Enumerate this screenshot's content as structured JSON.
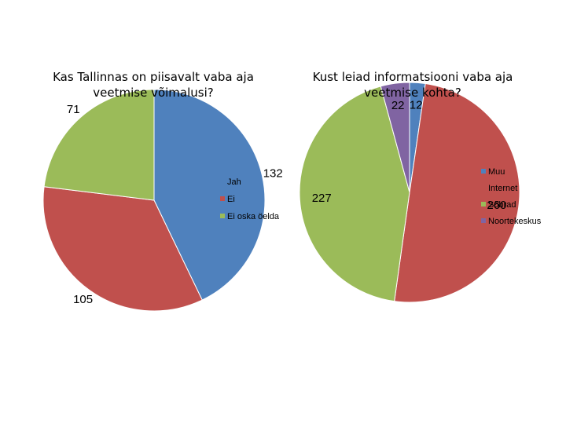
{
  "chart_data": [
    {
      "type": "pie",
      "title": "Kas Tallinnas on piisavalt vaba aja veetmise võimalusi?",
      "categories": [
        "Jah",
        "Ei",
        "Ei oska öelda"
      ],
      "values": [
        132,
        105,
        71
      ],
      "colors": [
        "#4f81bd",
        "#c0504d",
        "#9bbb59"
      ],
      "legend_position": "right"
    },
    {
      "type": "pie",
      "title": "Kust leiad informatsiooni vaba aja veetmise kohta?",
      "categories": [
        "Muu",
        "Internet",
        "Sõbrad",
        "Noortekeskus"
      ],
      "values": [
        12,
        260,
        227,
        22
      ],
      "colors": [
        "#4f81bd",
        "#c0504d",
        "#9bbb59",
        "#8064a2"
      ],
      "legend_position": "right"
    }
  ]
}
